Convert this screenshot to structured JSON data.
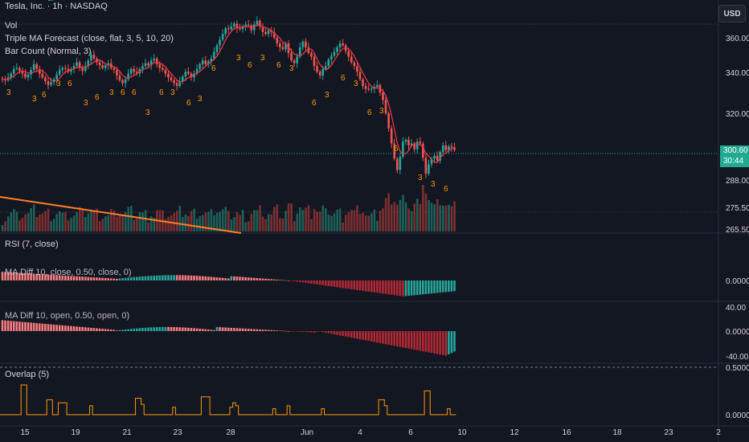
{
  "header": {
    "symbol_title": "Tesla, Inc. · 1h · NASDAQ",
    "currency_button": "USD"
  },
  "legends": {
    "vol": "Vol",
    "triple_ma": "Triple MA Forecast (close, flat, 3, 5, 10, 20)",
    "bar_count": "Bar Count (Normal, 3)",
    "rsi": "RSI (7, close)",
    "osc1": "MA Diff 10, close, 0.50, close, 0)",
    "osc2": "MA Diff 10, open, 0.50, open, 0)",
    "overlap": "Overlap (5)"
  },
  "price_badge": {
    "price": "300.60",
    "countdown": "30:44"
  },
  "colors": {
    "up": "#26a69a",
    "down": "#ef5350",
    "background": "#131722",
    "ma": "#f23645",
    "count": "#ff9800",
    "overlap": "#ff9800",
    "trend": "#ff7f27",
    "hline": "#22ab94"
  },
  "chart_data": [
    {
      "type": "candlestick",
      "title": "Tesla, Inc. · 1h · NASDAQ",
      "y_axis_ticks": [
        "360.00",
        "340.00",
        "320.00",
        "288.00",
        "275.50",
        "265.50"
      ],
      "x_axis_ticks": [
        "15",
        "19",
        "21",
        "23",
        "28",
        "Jun",
        "4",
        "6",
        "10",
        "12",
        "16",
        "18",
        "23",
        "2"
      ],
      "last_price": 300.6,
      "close": [
        338,
        337.5,
        339,
        341,
        343.5,
        344,
        342.5,
        341,
        339,
        340.5,
        343,
        346,
        343.5,
        341,
        339,
        337,
        335,
        336.5,
        338,
        340.5,
        343,
        344,
        343.5,
        342,
        343.5,
        345,
        347,
        344,
        342.5,
        345,
        348,
        351,
        349,
        347,
        345.5,
        344,
        345.5,
        346.5,
        344,
        343,
        340,
        337.5,
        336,
        338,
        341,
        343.5,
        342,
        341,
        343.5,
        345,
        346.5,
        345.5,
        348,
        349,
        346,
        344,
        343,
        341,
        339,
        337.5,
        336,
        334.5,
        337,
        339.5,
        342,
        341,
        339,
        341,
        343.5,
        346,
        348,
        346,
        347.5,
        349,
        352.5,
        356,
        359,
        362,
        365,
        364.5,
        366,
        367.5,
        365,
        364.5,
        366,
        367,
        366.5,
        364,
        367,
        369,
        366,
        363,
        362,
        364,
        363,
        360,
        357,
        355,
        354,
        357,
        352,
        348,
        346.5,
        350,
        355,
        358,
        355,
        352,
        350,
        345,
        342,
        340,
        343.5,
        345,
        348.5,
        350.5,
        352.5,
        355,
        357,
        356,
        353,
        350,
        347,
        345,
        342,
        338,
        334.5,
        333,
        332.5,
        333,
        334,
        335,
        331,
        327,
        320,
        312,
        304,
        296,
        290,
        297,
        305,
        306,
        303,
        304,
        301,
        305,
        304,
        296.5,
        288,
        293,
        296,
        297.5,
        295,
        299.5,
        303,
        300.5,
        302.5,
        302,
        300.6
      ],
      "bar_count_labels": [
        "3",
        "3",
        "6",
        "3",
        "6",
        "3",
        "6",
        "3",
        "6",
        "6",
        "3",
        "6",
        "3",
        "6",
        "3",
        "6",
        "3",
        "6",
        "3",
        "6",
        "3",
        "6",
        "3",
        "6",
        "3",
        "6",
        "3",
        "6",
        "3",
        "3",
        "6"
      ],
      "volume": "relative bars, up/down colored, higher toward end",
      "moving_average": "red line tracking closes"
    },
    {
      "type": "histogram",
      "title": "RSI (7, close)",
      "y_axis_ticks": [
        "0.0000"
      ]
    },
    {
      "type": "histogram",
      "title": "MA Diff 10, open, 0.50, open, 0)",
      "y_axis_ticks": [
        "40.00",
        "0.0000",
        "-40.00"
      ]
    },
    {
      "type": "line",
      "title": "Overlap (5)",
      "y_axis_ticks": [
        "0.5000",
        "0.0000"
      ]
    }
  ]
}
